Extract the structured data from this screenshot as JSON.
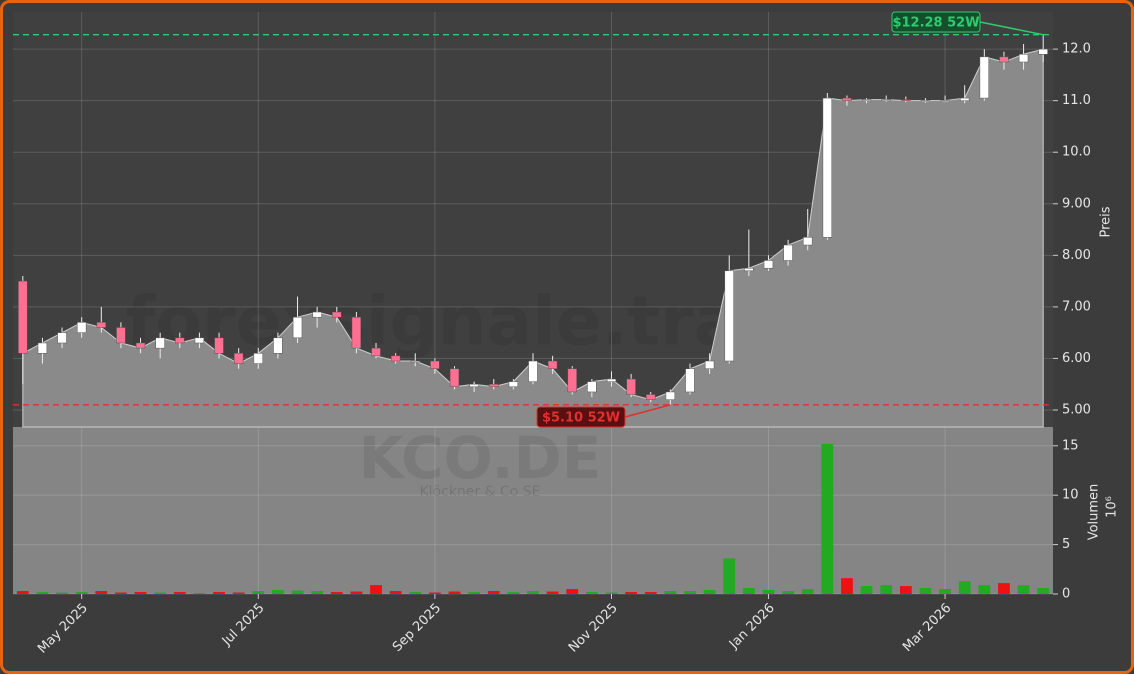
{
  "chart_data": {
    "type": "candlestick",
    "watermark": "forexsignale.trade",
    "ticker": "KCO.DE",
    "company": "Klöckner & Co SE",
    "price_axis_label": "Preis",
    "volume_axis_label": "Volumen",
    "volume_scale_label": "10⁶",
    "categories": [
      null,
      null,
      null,
      "May 2025",
      null,
      null,
      null,
      null,
      null,
      null,
      null,
      null,
      "Jul 2025",
      null,
      null,
      null,
      null,
      null,
      null,
      null,
      null,
      "Sep 2025",
      null,
      null,
      null,
      null,
      null,
      null,
      null,
      null,
      "Nov 2025",
      null,
      null,
      null,
      null,
      null,
      null,
      null,
      "Jan 2026",
      null,
      null,
      null,
      null,
      null,
      null,
      null,
      null,
      "Mar 2026",
      null,
      null,
      null,
      null,
      null
    ],
    "ohlc": {
      "open": [
        7.5,
        6.1,
        6.3,
        6.5,
        6.7,
        6.6,
        6.3,
        6.2,
        6.4,
        6.3,
        6.4,
        6.1,
        5.9,
        6.1,
        6.4,
        6.8,
        6.9,
        6.8,
        6.2,
        6.05,
        5.95,
        5.95,
        5.8,
        5.45,
        5.5,
        5.45,
        5.55,
        5.95,
        5.8,
        5.35,
        5.55,
        5.6,
        5.3,
        5.2,
        5.35,
        5.8,
        5.95,
        7.7,
        7.75,
        7.9,
        8.2,
        8.35,
        11.05,
        11.0,
        11.02,
        11.02,
        11.0,
        11.0,
        11.0,
        11.05,
        11.85,
        11.75,
        11.9
      ],
      "high": [
        7.6,
        6.4,
        6.6,
        6.8,
        7.0,
        6.7,
        6.4,
        6.5,
        6.5,
        6.5,
        6.5,
        6.2,
        6.2,
        6.5,
        7.2,
        7.0,
        7.0,
        6.9,
        6.3,
        6.1,
        6.1,
        6.0,
        5.85,
        5.55,
        5.6,
        5.6,
        6.1,
        6.05,
        5.85,
        5.6,
        5.75,
        5.7,
        5.35,
        5.4,
        5.9,
        6.1,
        8.0,
        8.5,
        8.0,
        8.3,
        8.9,
        11.15,
        11.1,
        11.05,
        11.1,
        11.08,
        11.05,
        11.1,
        11.3,
        12.0,
        11.95,
        12.1,
        12.28
      ],
      "low": [
        5.5,
        5.9,
        6.2,
        6.4,
        6.5,
        6.2,
        6.1,
        6.0,
        6.2,
        6.2,
        6.0,
        5.8,
        5.8,
        6.0,
        6.3,
        6.6,
        6.7,
        6.1,
        6.0,
        5.9,
        5.85,
        5.7,
        5.4,
        5.35,
        5.4,
        5.4,
        5.5,
        5.7,
        5.3,
        5.25,
        5.45,
        5.25,
        5.15,
        5.1,
        5.3,
        5.7,
        5.9,
        7.6,
        7.7,
        7.8,
        8.1,
        8.3,
        10.9,
        10.95,
        10.98,
        10.97,
        10.96,
        10.97,
        10.95,
        11.0,
        11.6,
        11.6,
        11.75
      ],
      "close": [
        6.1,
        6.3,
        6.5,
        6.7,
        6.6,
        6.3,
        6.2,
        6.4,
        6.3,
        6.4,
        6.1,
        5.9,
        6.1,
        6.4,
        6.8,
        6.9,
        6.8,
        6.2,
        6.05,
        5.95,
        5.95,
        5.8,
        5.45,
        5.5,
        5.45,
        5.55,
        5.95,
        5.8,
        5.35,
        5.55,
        5.6,
        5.3,
        5.2,
        5.35,
        5.8,
        5.95,
        7.7,
        7.75,
        7.9,
        8.2,
        8.35,
        11.05,
        11.0,
        11.02,
        11.02,
        11.0,
        11.0,
        11.0,
        11.05,
        11.85,
        11.75,
        11.9,
        12.0
      ]
    },
    "volume": [
      0.3,
      0.2,
      0.15,
      0.2,
      0.3,
      0.15,
      0.2,
      0.15,
      0.2,
      0.1,
      0.2,
      0.15,
      0.3,
      0.4,
      0.35,
      0.3,
      0.2,
      0.25,
      0.9,
      0.3,
      0.2,
      0.15,
      0.25,
      0.2,
      0.3,
      0.2,
      0.3,
      0.25,
      0.5,
      0.2,
      0.15,
      0.2,
      0.2,
      0.3,
      0.3,
      0.4,
      3.6,
      0.6,
      0.4,
      0.3,
      0.5,
      15.2,
      1.6,
      0.8,
      0.9,
      0.8,
      0.6,
      0.5,
      1.3,
      0.9,
      1.1,
      0.9,
      0.6
    ],
    "up_color": "#22aa22",
    "down_color": "#ee1111",
    "area_color": "#8a8a8a",
    "high_52w": {
      "value": 12.28,
      "label": "$12.28 52W",
      "color": "#2ecc71"
    },
    "low_52w": {
      "value": 5.1,
      "label": "$5.10 52W",
      "color": "#e03030"
    },
    "ylim": [
      4.67,
      12.72
    ],
    "yticks": [
      {
        "value": 5,
        "label": "5.00"
      },
      {
        "value": 6,
        "label": "6.00"
      },
      {
        "value": 7,
        "label": "7.00"
      },
      {
        "value": 8,
        "label": "8.00"
      },
      {
        "value": 9,
        "label": "9.00"
      },
      {
        "value": 10,
        "label": "10.0"
      },
      {
        "value": 11,
        "label": "11.0"
      },
      {
        "value": 12,
        "label": "12.0"
      }
    ],
    "y2lim": [
      0,
      16.9
    ],
    "y2ticks": [
      0,
      5,
      10,
      15
    ],
    "grid": true
  }
}
